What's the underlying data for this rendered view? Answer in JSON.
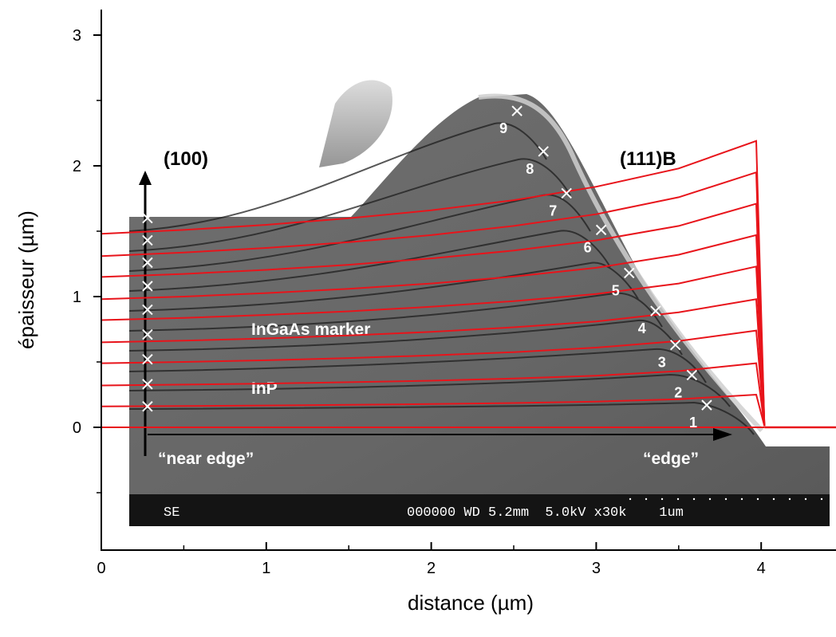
{
  "chart_data": {
    "type": "line",
    "xlabel": "distance (µm)",
    "ylabel": "épaisseur (µm)",
    "xlim": [
      0,
      4.5
    ],
    "ylim": [
      -0.95,
      3.2
    ],
    "xticks": [
      0,
      1,
      2,
      3,
      4
    ],
    "yticks": [
      0,
      1,
      2,
      3
    ],
    "x_tick_labels": [
      "0",
      "1",
      "2",
      "3",
      "4"
    ],
    "y_tick_labels": [
      "0",
      "1",
      "2",
      "3"
    ],
    "line_color": "#e8141b",
    "series": [
      {
        "x": [
          0,
          0.5,
          1,
          1.5,
          2,
          2.5,
          3,
          3.5,
          3.97,
          4.02
        ],
        "y": [
          0,
          0,
          0,
          0,
          0,
          0,
          0,
          0,
          0,
          0
        ]
      },
      {
        "x": [
          0,
          0.5,
          1,
          1.5,
          2,
          2.5,
          3,
          3.5,
          3.97,
          4.02
        ],
        "y": [
          0.16,
          0.163,
          0.167,
          0.172,
          0.178,
          0.186,
          0.197,
          0.215,
          0.25,
          0.01
        ]
      },
      {
        "x": [
          0,
          0.5,
          1,
          1.5,
          2,
          2.5,
          3,
          3.5,
          3.97,
          4.02
        ],
        "y": [
          0.32,
          0.327,
          0.335,
          0.345,
          0.357,
          0.373,
          0.395,
          0.43,
          0.49,
          0.01
        ]
      },
      {
        "x": [
          0,
          0.5,
          1,
          1.5,
          2,
          2.5,
          3,
          3.5,
          3.97,
          4.02
        ],
        "y": [
          0.49,
          0.5,
          0.513,
          0.53,
          0.55,
          0.575,
          0.61,
          0.66,
          0.74,
          0.01
        ]
      },
      {
        "x": [
          0,
          0.5,
          1,
          1.5,
          2,
          2.5,
          3,
          3.5,
          3.97,
          4.02
        ],
        "y": [
          0.65,
          0.663,
          0.68,
          0.703,
          0.73,
          0.765,
          0.81,
          0.88,
          0.98,
          0.01
        ]
      },
      {
        "x": [
          0,
          0.5,
          1,
          1.5,
          2,
          2.5,
          3,
          3.5,
          3.97,
          4.02
        ],
        "y": [
          0.82,
          0.837,
          0.86,
          0.887,
          0.922,
          0.965,
          1.02,
          1.1,
          1.23,
          0.01
        ]
      },
      {
        "x": [
          0,
          0.5,
          1,
          1.5,
          2,
          2.5,
          3,
          3.5,
          3.97,
          4.02
        ],
        "y": [
          0.98,
          1.0,
          1.027,
          1.06,
          1.1,
          1.153,
          1.22,
          1.32,
          1.47,
          0.01
        ]
      },
      {
        "x": [
          0,
          0.5,
          1,
          1.5,
          2,
          2.5,
          3,
          3.5,
          3.97,
          4.02
        ],
        "y": [
          1.15,
          1.173,
          1.204,
          1.243,
          1.292,
          1.352,
          1.43,
          1.54,
          1.71,
          0.01
        ]
      },
      {
        "x": [
          0,
          0.5,
          1,
          1.5,
          2,
          2.5,
          3,
          3.5,
          3.97,
          4.02
        ],
        "y": [
          1.31,
          1.337,
          1.372,
          1.416,
          1.47,
          1.54,
          1.63,
          1.76,
          1.95,
          0.01
        ]
      },
      {
        "x": [
          0,
          0.5,
          1,
          1.5,
          2,
          2.5,
          3,
          3.5,
          3.97,
          4.02
        ],
        "y": [
          1.48,
          1.51,
          1.549,
          1.599,
          1.66,
          1.737,
          1.84,
          1.98,
          2.19,
          0.01
        ]
      }
    ],
    "horizontal_extension": {
      "x": [
        4.02,
        4.5
      ],
      "y": [
        0,
        0
      ]
    },
    "markers_left": {
      "x": 0.28,
      "y": [
        0.16,
        0.33,
        0.52,
        0.71,
        0.9,
        1.08,
        1.26,
        1.43,
        1.6
      ]
    },
    "markers_facet": [
      {
        "label": "1",
        "x": 3.67,
        "y": 0.17
      },
      {
        "label": "2",
        "x": 3.58,
        "y": 0.4
      },
      {
        "label": "3",
        "x": 3.48,
        "y": 0.63
      },
      {
        "label": "4",
        "x": 3.36,
        "y": 0.89
      },
      {
        "label": "5",
        "x": 3.2,
        "y": 1.18
      },
      {
        "label": "6",
        "x": 3.03,
        "y": 1.51
      },
      {
        "label": "7",
        "x": 2.82,
        "y": 1.79
      },
      {
        "label": "8",
        "x": 2.68,
        "y": 2.11
      },
      {
        "label": "9",
        "x": 2.52,
        "y": 2.42
      }
    ]
  },
  "sem": {
    "facet_100": "(100)",
    "facet_111": "(111)B",
    "marker_label": "InGaAs marker",
    "inp_label": "InP",
    "near_edge": "“near edge”",
    "edge": "“edge”",
    "bar_left": "SE",
    "bar_right": "000000 WD 5.2mm  5.0kV x30k    1um"
  },
  "colors": {
    "background_sem": "#6e6e6e",
    "sem_dark": "#4a4a4a",
    "scale_bar": "#141414",
    "ridge_highlight": "#cfcfcf",
    "red": "#e8141b"
  }
}
